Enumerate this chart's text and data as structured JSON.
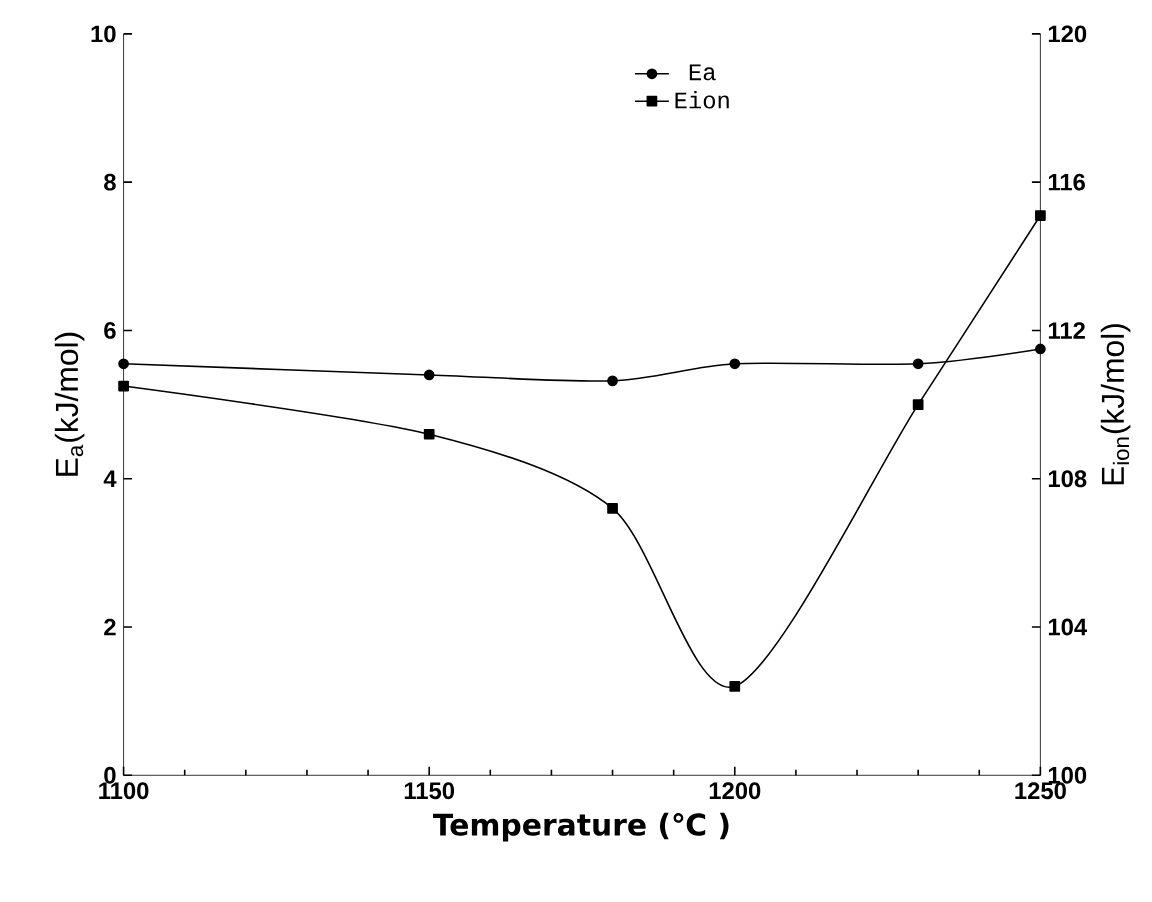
{
  "chart_data": {
    "type": "line",
    "xlabel": "Temperature (℃ )",
    "ylabel": "E$_{a}$(kJ/mol)",
    "y2label": "E$_{ion}$(kJ/mol)",
    "x": [
      1100,
      1150,
      1180,
      1200,
      1230,
      1250
    ],
    "series": [
      {
        "name": "Ea",
        "color": "#000000",
        "marker": "circle",
        "values": [
          5.55,
          5.4,
          5.32,
          5.55,
          5.55,
          5.75
        ]
      },
      {
        "name": "Eion",
        "color": "#000000",
        "marker": "square",
        "axis": "y2",
        "values": [
          110.5,
          109.2,
          107.2,
          102.4,
          110.0,
          115.1
        ]
      }
    ],
    "xlim": [
      1100,
      1250
    ],
    "xticks": [
      1100,
      1150,
      1200,
      1250
    ],
    "ylim": [
      0,
      10
    ],
    "yticks": [
      0,
      2,
      4,
      6,
      8,
      10
    ],
    "y2lim": [
      100,
      120
    ],
    "y2ticks": [
      100,
      104,
      108,
      112,
      116,
      120
    ],
    "legend": "top right",
    "grid": false,
    "line_style": "solid"
  }
}
